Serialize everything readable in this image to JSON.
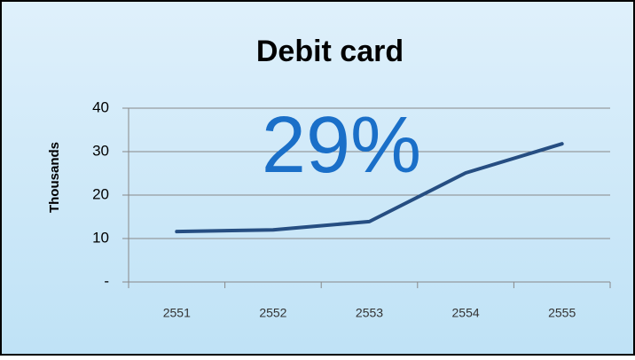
{
  "chart_data": {
    "type": "line",
    "title": "Debit card",
    "y_label": "Thousands",
    "annotation": "29%",
    "categories": [
      "2551",
      "2552",
      "2553",
      "2554",
      "2555"
    ],
    "series": [
      {
        "name": "Debit card",
        "color": "#264e82",
        "values": [
          11.6,
          12,
          13.9,
          25.1,
          31.8
        ]
      }
    ],
    "ylim": [
      0,
      40
    ],
    "yticks": [
      {
        "value": 0,
        "label": "-"
      },
      10,
      20,
      30,
      40
    ],
    "grid": true
  }
}
